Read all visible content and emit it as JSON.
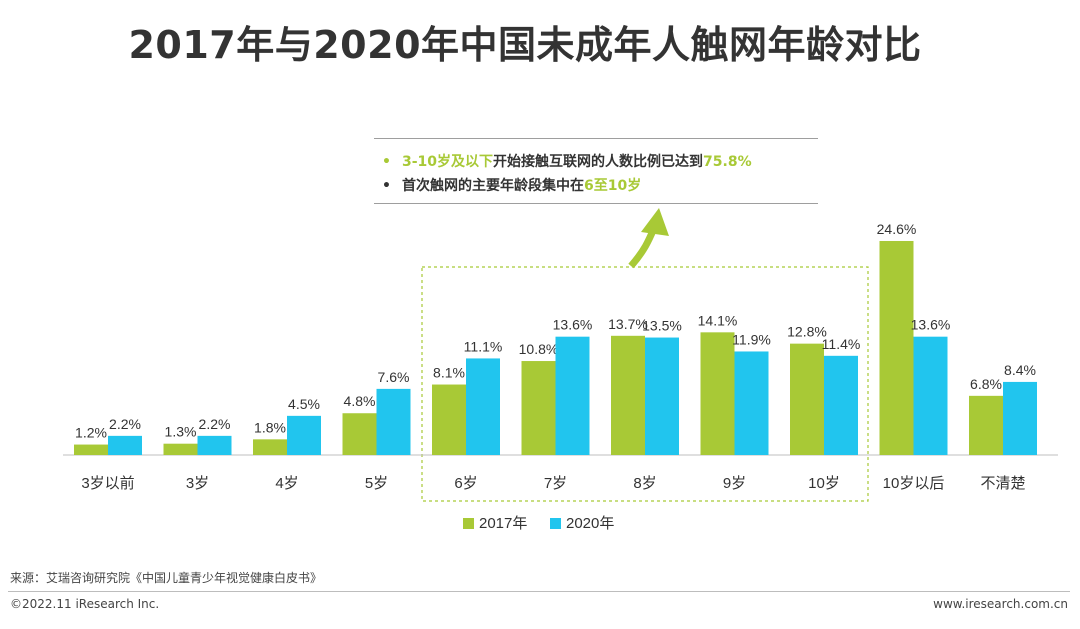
{
  "title": "2017年与2020年中国未成年人触网年龄对比",
  "callout": {
    "line1_highlight": "3-10岁及以下",
    "line1_mid": "开始接触互联网的人数比例已达到",
    "line1_value": "75.8%",
    "line2_text": "首次触网的主要年龄段集中在",
    "line2_highlight": "6至10岁"
  },
  "colors": {
    "series_2017": "#a8c936",
    "series_2020": "#21c5ee",
    "highlight": "#a8c936"
  },
  "chart_data": {
    "type": "bar",
    "title": "2017年与2020年中国未成年人触网年龄对比",
    "categories": [
      "3岁以前",
      "3岁",
      "4岁",
      "5岁",
      "6岁",
      "7岁",
      "8岁",
      "9岁",
      "10岁",
      "10岁以后",
      "不清楚"
    ],
    "series": [
      {
        "name": "2017年",
        "values": [
          1.2,
          1.3,
          1.8,
          4.8,
          8.1,
          10.8,
          13.7,
          14.1,
          12.8,
          24.6,
          6.8
        ],
        "labels": [
          "1.2%",
          "1.3%",
          "1.8%",
          "4.8%",
          "8.1%",
          "10.8%",
          "13.7%",
          "14.1%",
          "12.8%",
          "24.6%",
          "6.8%"
        ]
      },
      {
        "name": "2020年",
        "values": [
          2.2,
          2.2,
          4.5,
          7.6,
          11.1,
          13.6,
          13.5,
          11.9,
          11.4,
          13.6,
          8.4
        ],
        "labels": [
          "2.2%",
          "2.2%",
          "4.5%",
          "7.6%",
          "11.1%",
          "13.6%",
          "13.5%",
          "11.9%",
          "11.4%",
          "13.6%",
          "8.4%"
        ]
      }
    ],
    "highlight_range": [
      "6岁",
      "10岁"
    ],
    "legend": "bottom-center",
    "xlabel": "",
    "ylabel": "",
    "ylim": [
      0,
      25
    ],
    "grid": false
  },
  "source": "来源：艾瑞咨询研究院《中国儿童青少年视觉健康白皮书》",
  "footer": {
    "copyright": "©2022.11 iResearch Inc.",
    "website": "www.iresearch.com.cn"
  }
}
